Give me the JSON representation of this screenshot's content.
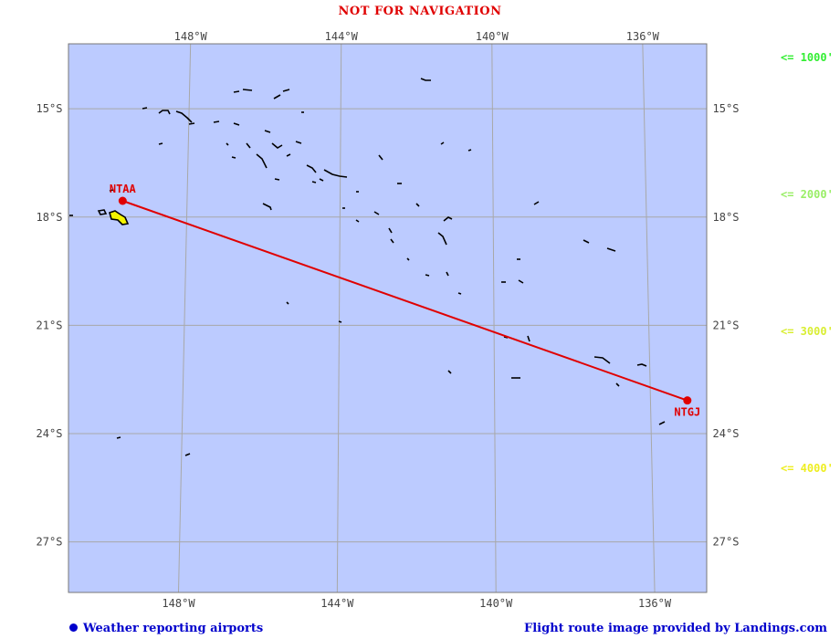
{
  "header": {
    "title": "NOT FOR NAVIGATION"
  },
  "colors": {
    "ocean": "#bccbff",
    "grid": "#a8a8a8",
    "route": "#e00000",
    "coastline": "#000000",
    "island_fill": "#f4f400"
  },
  "map": {
    "lon_range": [
      -151,
      -134.5
    ],
    "lat_range": [
      -28.4,
      -13.2
    ],
    "longitude_labels": [
      "148°W",
      "144°W",
      "140°W",
      "136°W"
    ],
    "latitude_labels": [
      "15°S",
      "18°S",
      "21°S",
      "24°S",
      "27°S"
    ]
  },
  "airports": [
    {
      "code": "NTAA",
      "lon": -149.6,
      "lat": -17.55
    },
    {
      "code": "NTGJ",
      "lon": -135.0,
      "lat": -23.08
    }
  ],
  "legend": [
    {
      "label": "<= 1000'",
      "color": "#33ee33"
    },
    {
      "label": "<= 2000'",
      "color": "#99ee66"
    },
    {
      "label": "<= 3000'",
      "color": "#d9ee33"
    },
    {
      "label": "<= 4000'",
      "color": "#eeee22"
    }
  ],
  "footer": {
    "left": "Weather reporting airports",
    "right": "Flight route image provided by Landings.com"
  }
}
